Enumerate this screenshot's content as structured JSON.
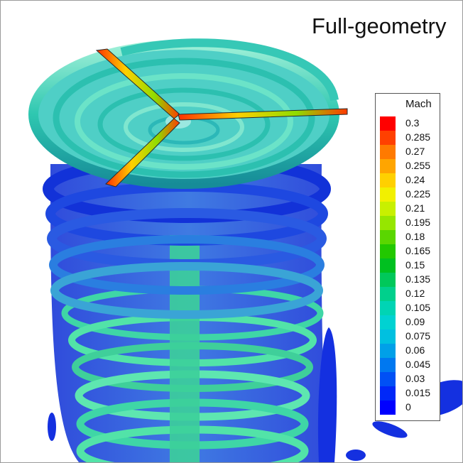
{
  "title": "Full-geometry",
  "legend": {
    "title": "Mach",
    "ticks": [
      "0.3",
      "0.285",
      "0.27",
      "0.255",
      "0.24",
      "0.225",
      "0.21",
      "0.195",
      "0.18",
      "0.165",
      "0.15",
      "0.135",
      "0.12",
      "0.105",
      "0.09",
      "0.075",
      "0.06",
      "0.045",
      "0.03",
      "0.015",
      "0"
    ],
    "colors": [
      "#ff0000",
      "#ff4000",
      "#ff7a00",
      "#ffa500",
      "#ffd000",
      "#f2f000",
      "#c8f000",
      "#96e600",
      "#5ad600",
      "#22c800",
      "#00c020",
      "#00c85a",
      "#00d08c",
      "#00d4b4",
      "#00d2d2",
      "#00c0e0",
      "#00a0e8",
      "#0078f0",
      "#0050f5",
      "#0028f8",
      "#0000ff"
    ]
  }
}
